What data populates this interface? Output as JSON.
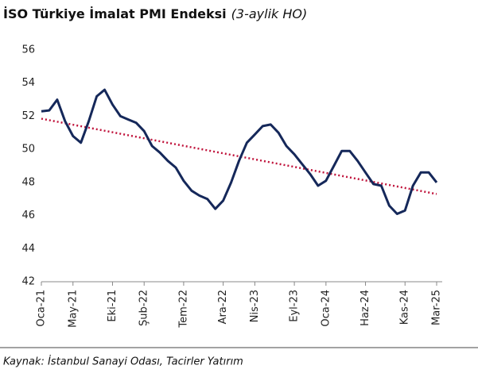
{
  "chart_data": {
    "type": "line",
    "title": "İSO Türkiye İmalat PMI Endeksi",
    "subtitle": "(3-aylik HO)",
    "source": "Kaynak: İstanbul Sanayi Odası, Tacirler Yatırım",
    "categories": [
      "Oca-21",
      null,
      null,
      null,
      "May-21",
      null,
      null,
      null,
      null,
      "Eki-21",
      null,
      null,
      null,
      "Şub-22",
      null,
      null,
      null,
      null,
      "Tem-22",
      null,
      null,
      null,
      null,
      "Ara-22",
      null,
      null,
      null,
      "Nis-23",
      null,
      null,
      null,
      null,
      "Eyl-23",
      null,
      null,
      null,
      "Oca-24",
      null,
      null,
      null,
      null,
      "Haz-24",
      null,
      null,
      null,
      null,
      "Kas-24",
      null,
      null,
      null,
      "Mar-25"
    ],
    "values": [
      52.3,
      52.35,
      53.0,
      51.7,
      50.8,
      50.4,
      51.7,
      53.2,
      53.6,
      52.7,
      52.0,
      51.8,
      51.6,
      51.1,
      50.2,
      49.8,
      49.3,
      48.9,
      48.1,
      47.5,
      47.2,
      47.0,
      46.4,
      46.9,
      48.0,
      49.3,
      50.4,
      50.9,
      51.4,
      51.5,
      51.0,
      50.2,
      49.7,
      49.1,
      48.5,
      47.8,
      48.1,
      49.0,
      49.9,
      49.9,
      49.3,
      48.6,
      47.9,
      47.8,
      46.6,
      46.1,
      46.3,
      47.8,
      48.6,
      48.6,
      48.0
    ],
    "color": "#15285a",
    "trendline": {
      "start": 51.85,
      "end": 47.3,
      "color": "#c0143c"
    },
    "ylim": [
      42,
      56
    ],
    "yticks": [
      42,
      44,
      46,
      48,
      50,
      52,
      54,
      56
    ],
    "grid": false
  }
}
